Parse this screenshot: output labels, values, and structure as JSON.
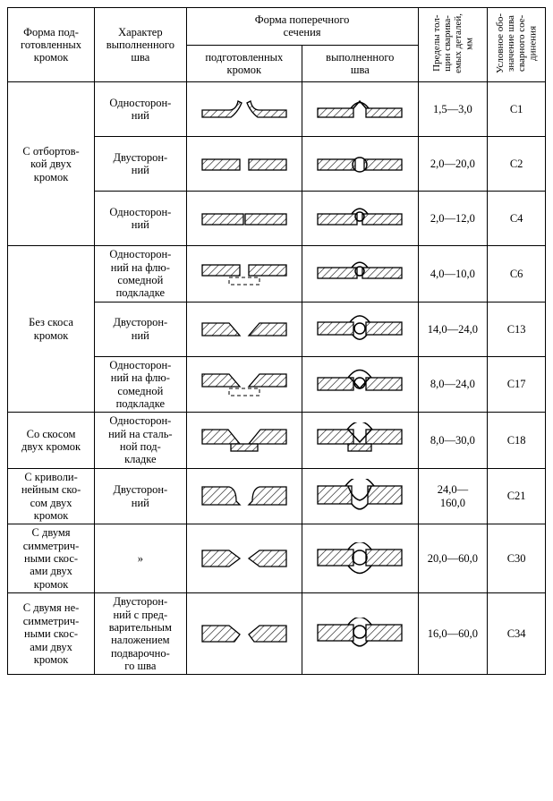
{
  "headers": {
    "col1": "Форма под-\nготовленных\nкромок",
    "col2": "Характер\nвыполненного\nшва",
    "col34_top": "Форма поперечного\nсечения",
    "col3": "подготовленных\nкромок",
    "col4": "выполненного\nшва",
    "col5": "Пределы тол-\nщин сварива-\nемых деталей,\nмм",
    "col6": "Условное обо-\nзначение шва\nсварного сое-\nдинения"
  },
  "rows": [
    {
      "form": "С отбортов-\nкой двух\nкромок",
      "char": "Односторон-\nний",
      "thick": "1,5—3,0",
      "code": "С1",
      "dprep": "flange",
      "dweld": "flange_w"
    },
    {
      "form": "",
      "char": "Двусторон-\nний",
      "thick": "2,0—20,0",
      "code": "С2",
      "dprep": "square",
      "dweld": "square_dw"
    },
    {
      "form": "",
      "char": "Односторон-\nний",
      "thick": "2,0—12,0",
      "code": "С4",
      "dprep": "square_tight",
      "dweld": "square_sw"
    },
    {
      "form": "Без скоса\nкромок",
      "char": "Односторон-\nний на флю-\nсомедной\nподкладке",
      "thick": "4,0—10,0",
      "code": "С6",
      "dprep": "square_back",
      "dweld": "square_sw_back"
    },
    {
      "form": "",
      "char": "Двусторон-\nний",
      "thick": "14,0—24,0",
      "code": "С13",
      "dprep": "vbevel",
      "dweld": "vbevel_dw"
    },
    {
      "form": "",
      "char": "Односторон-\nний на флю-\nсомедной\nподкладке",
      "thick": "8,0—24,0",
      "code": "С17",
      "dprep": "vbevel_back",
      "dweld": "vbevel_sw"
    },
    {
      "form": "Со скосом\nдвух кромок",
      "char": "Односторон-\nний на сталь-\nной под-\nкладке",
      "thick": "8,0—30,0",
      "code": "С18",
      "dprep": "vbevel_steel",
      "dweld": "vbevel_sw_steel"
    },
    {
      "form": "С криволи-\nнейным ско-\nсом двух\nкромок",
      "char": "Двусторон-\nний",
      "thick": "24,0—\n160,0",
      "code": "С21",
      "dprep": "ubevel",
      "dweld": "ubevel_w"
    },
    {
      "form": "С двумя\nсимметрич-\nными скос-\nами двух\nкромок",
      "char": "»",
      "thick": "20,0—60,0",
      "code": "С30",
      "dprep": "xbevel",
      "dweld": "xbevel_w"
    },
    {
      "form": "С двумя не-\nсимметрич-\nными скос-\nами двух\nкромок",
      "char": "Двусторон-\nний с пред-\nварительным\nналожением\nподварочно-\nго шва",
      "thick": "16,0—60,0",
      "code": "С34",
      "dprep": "xbevel_asym",
      "dweld": "xbevel_asym_w"
    }
  ],
  "colors": {
    "line": "#000000",
    "bg": "#ffffff"
  }
}
